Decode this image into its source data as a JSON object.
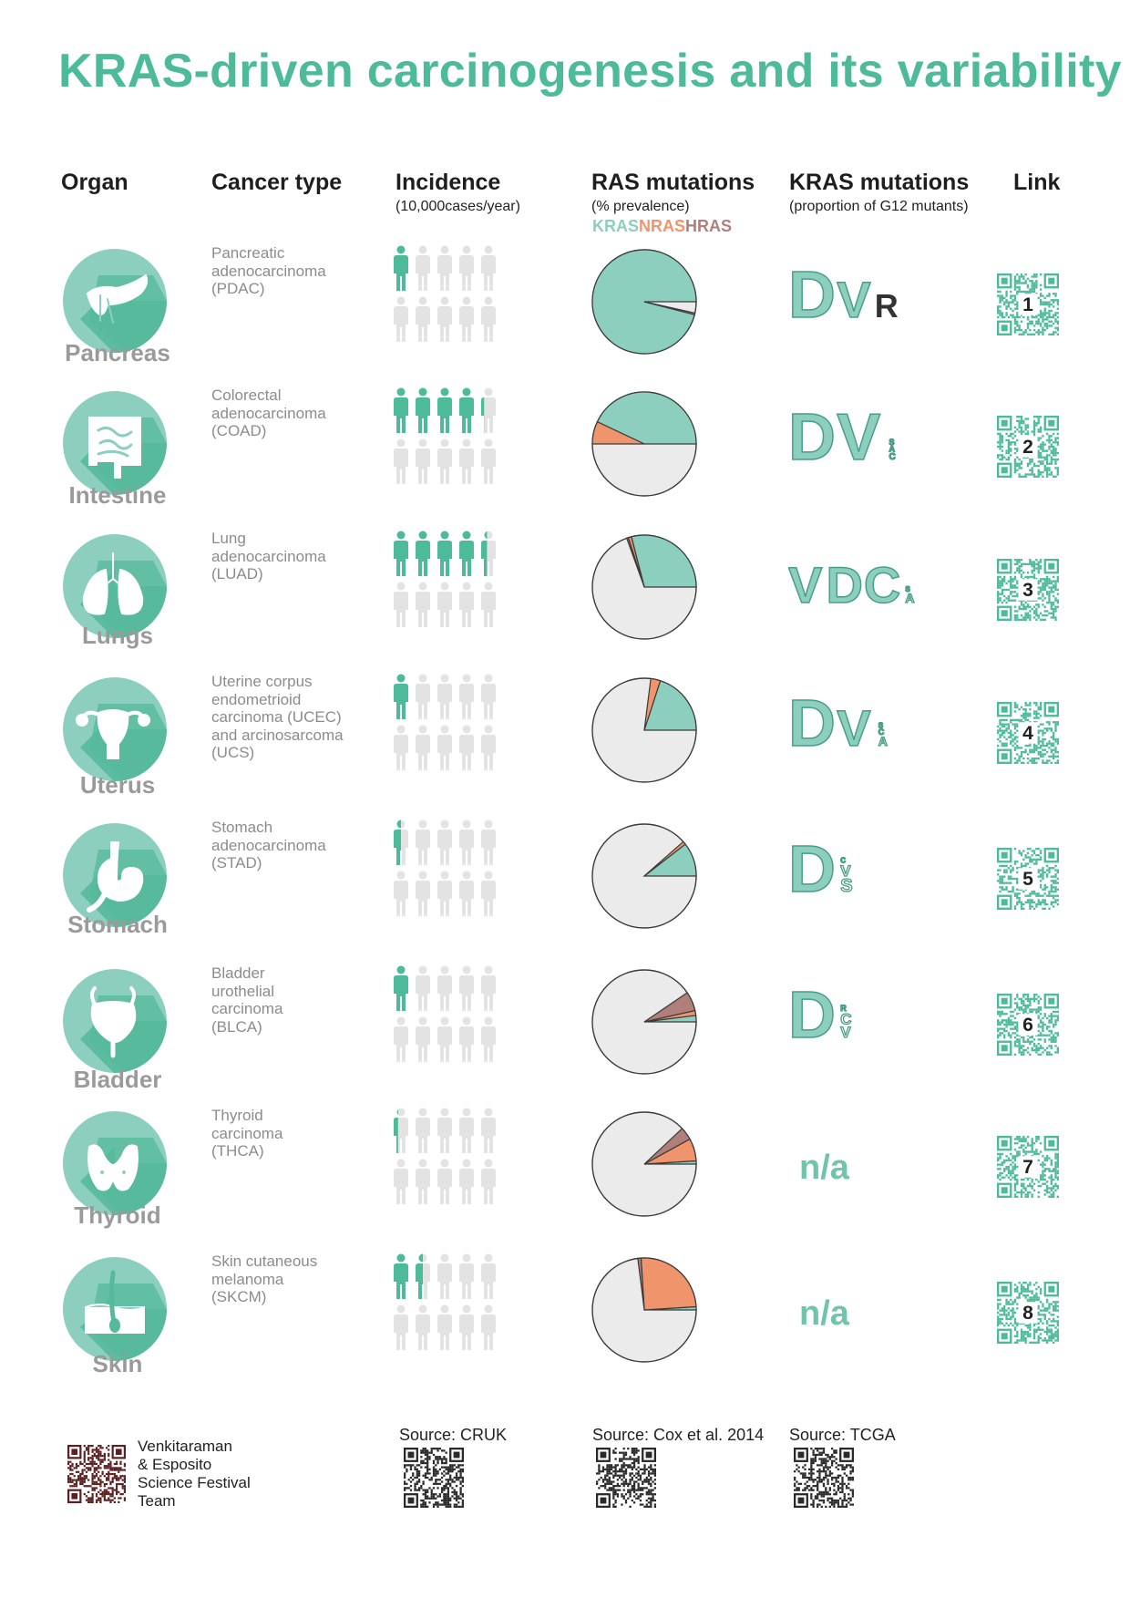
{
  "title": "KRAS-driven carcinogenesis and its variability",
  "headers": {
    "organ": "Organ",
    "cancer_type": "Cancer type",
    "incidence": "Incidence",
    "incidence_sub": "(10,000cases/year)",
    "ras": "RAS mutations",
    "ras_sub": "(% prevalence)",
    "kras": "KRAS mutations",
    "kras_sub": "(proportion of G12 mutants)",
    "link": "Link"
  },
  "legend": [
    {
      "label": "KRAS",
      "color": "#8ccfbf"
    },
    {
      "label": "NRAS",
      "color": "#f0956b"
    },
    {
      "label": "HRAS",
      "color": "#b07f7a"
    }
  ],
  "colors": {
    "accent": "#4dbb9a",
    "icon_light": "#8ccfbf",
    "icon_dark": "#55b99b",
    "person_on": "#4dbb9a",
    "person_off": "#e3e3e3",
    "pie_rest": "#ebebeb",
    "kras_letter_fill": "#8ccfbf",
    "kras_letter_stroke": "#4a9e87"
  },
  "organs": [
    {
      "organ": "Pancreas",
      "icon": "pancreas-icon",
      "cancer_type": "Pancreatic\nadenocarcinoma\n(PDAC)",
      "incidence_figures": 1,
      "ras": {
        "kras": 96,
        "nras": 0,
        "hras": 0.5
      },
      "kras_letters": [
        {
          "ch": "D",
          "size": 3
        },
        {
          "ch": "V",
          "size": 2
        },
        {
          "ch": "R",
          "size": 1
        }
      ],
      "kras_na": "",
      "link": "1"
    },
    {
      "organ": "Intestine",
      "icon": "intestine-icon",
      "cancer_type": "Colorectal\nadenocarcinoma\n(COAD)",
      "incidence_figures": 4.2,
      "ras": {
        "kras": 43,
        "nras": 7,
        "hras": 0
      },
      "kras_letters": [
        {
          "ch": "D",
          "size": 3
        },
        {
          "ch": "V",
          "size": 3
        },
        {
          "ch": "S",
          "size": 0.25
        },
        {
          "ch": "A",
          "size": 0.25
        },
        {
          "ch": "C",
          "size": 0.3
        }
      ],
      "kras_na": "",
      "link": "2"
    },
    {
      "organ": "Lungs",
      "icon": "lungs-icon",
      "cancer_type": "Lung\nadenocarcinoma\n(LUAD)",
      "incidence_figures": 4.4,
      "ras": {
        "kras": 29,
        "nras": 1,
        "hras": 0.5
      },
      "kras_letters": [
        {
          "ch": "V",
          "size": 2
        },
        {
          "ch": "D",
          "size": 2
        },
        {
          "ch": "C",
          "size": 2
        },
        {
          "ch": "S",
          "size": 0.2
        },
        {
          "ch": "A",
          "size": 0.4
        }
      ],
      "kras_na": "",
      "link": "3"
    },
    {
      "organ": "Uterus",
      "icon": "uterus-icon",
      "cancer_type": "Uterine corpus\nendometrioid\ncarcinoma (UCEC)\nand arcinosarcoma\n(UCS)",
      "incidence_figures": 1,
      "ras": {
        "kras": 20,
        "nras": 3,
        "hras": 0
      },
      "kras_letters": [
        {
          "ch": "D",
          "size": 3
        },
        {
          "ch": "V",
          "size": 2
        },
        {
          "ch": "S",
          "size": 0.15
        },
        {
          "ch": "C",
          "size": 0.25
        },
        {
          "ch": "A",
          "size": 0.4
        }
      ],
      "kras_na": "",
      "link": "4"
    },
    {
      "organ": "Stomach",
      "icon": "stomach-icon",
      "cancer_type": "Stomach\nadenocarcinoma\n(STAD)",
      "incidence_figures": 0.5,
      "ras": {
        "kras": 10.5,
        "nras": 1,
        "hras": 0
      },
      "kras_letters": [
        {
          "ch": "D",
          "size": 3
        },
        {
          "ch": "C",
          "size": 0.15
        },
        {
          "ch": "V",
          "size": 0.5
        },
        {
          "ch": "S",
          "size": 0.6
        }
      ],
      "kras_na": "",
      "link": "5"
    },
    {
      "organ": "Bladder",
      "icon": "bladder-icon",
      "cancer_type": "Bladder\nurothelial\ncarcinoma\n(BLCA)",
      "incidence_figures": 1,
      "ras": {
        "kras": 2,
        "nras": 1.5,
        "hras": 6
      },
      "kras_letters": [
        {
          "ch": "D",
          "size": 3
        },
        {
          "ch": "R",
          "size": 0.25
        },
        {
          "ch": "C",
          "size": 0.5
        },
        {
          "ch": "V",
          "size": 0.5
        }
      ],
      "kras_na": "",
      "link": "6"
    },
    {
      "organ": "Thyroid",
      "icon": "thyroid-icon",
      "cancer_type": "Thyroid\ncarcinoma\n(THCA)",
      "incidence_figures": 0.3,
      "ras": {
        "kras": 1,
        "nras": 7,
        "hras": 4
      },
      "kras_letters": [],
      "kras_na": "n/a",
      "link": "7"
    },
    {
      "organ": "Skin",
      "icon": "skin-icon",
      "cancer_type": "Skin cutaneous\nmelanoma\n(SKCM)",
      "incidence_figures": 1.5,
      "ras": {
        "kras": 1,
        "nras": 25,
        "hras": 1
      },
      "kras_letters": [],
      "kras_na": "n/a",
      "link": "8"
    }
  ],
  "footer": {
    "team": "Venkitaraman\n& Esposito\nScience Festival\nTeam",
    "source_incidence": "Source: CRUK",
    "source_ras": "Source: Cox et al. 2014",
    "source_kras": "Source: TCGA"
  }
}
